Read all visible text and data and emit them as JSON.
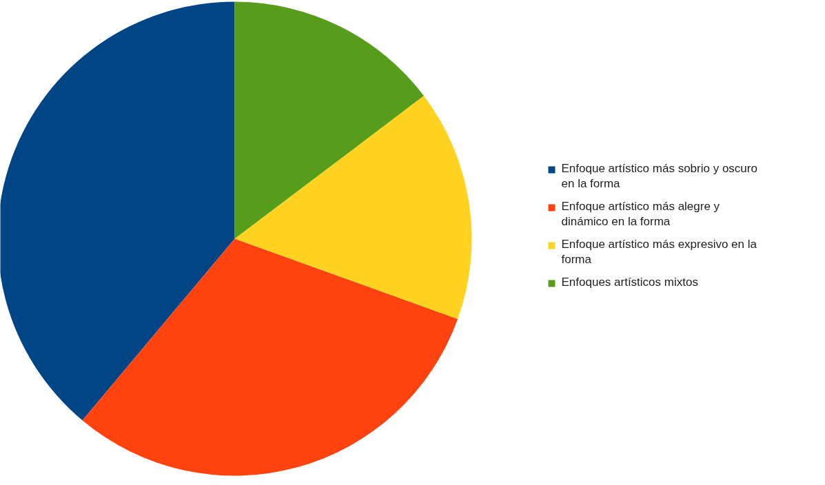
{
  "chart_data": {
    "type": "pie",
    "categories": [
      "Enfoque artístico más sobrio y oscuro en la forma",
      "Enfoque artístico más alegre y dinámico en la forma",
      "Enfoque artístico más expresivo en la forma",
      "Enfoques artísticos mixtos"
    ],
    "values": [
      38.9,
      30.6,
      15.8,
      14.7
    ],
    "colors": [
      "#004586",
      "#ff420e",
      "#ffd320",
      "#579d1c"
    ],
    "legend": "right"
  }
}
